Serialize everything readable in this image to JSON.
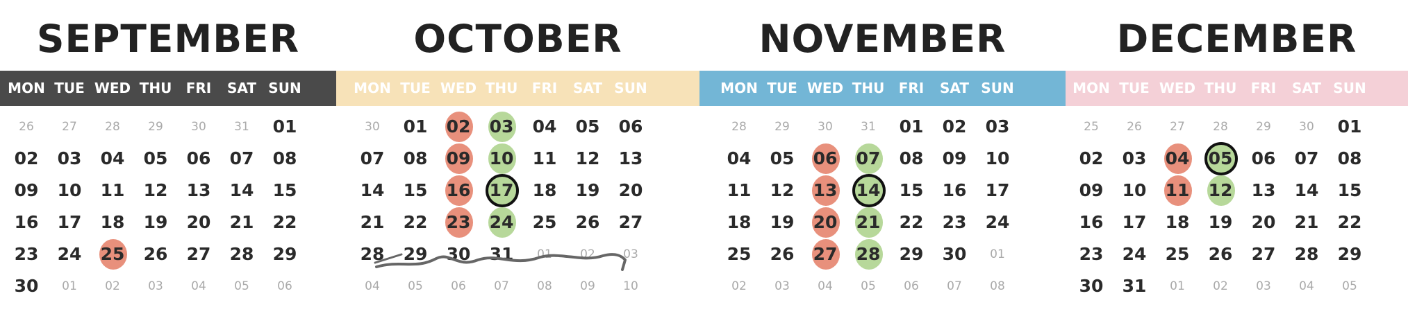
{
  "weekdays": [
    "MON",
    "TUE",
    "WED",
    "THU",
    "FRI",
    "SAT",
    "SUN"
  ],
  "colors": {
    "september": "#4a4a4a",
    "october": "#f7e2b8",
    "november": "#73b6d6",
    "december": "#f4d0d7",
    "weekday_text_on_light": "#ffffff",
    "mark_red": "#e8907c",
    "mark_green": "#b7d89a",
    "ring": "#111111"
  },
  "months": [
    {
      "key": "september",
      "title": "SEPTEMBER",
      "weeks": [
        [
          "26",
          "27",
          "28",
          "29",
          "30",
          "31",
          "01"
        ],
        [
          "02",
          "03",
          "04",
          "05",
          "06",
          "07",
          "08"
        ],
        [
          "09",
          "10",
          "11",
          "12",
          "13",
          "14",
          "15"
        ],
        [
          "16",
          "17",
          "18",
          "19",
          "20",
          "21",
          "22"
        ],
        [
          "23",
          "24",
          "25",
          "26",
          "27",
          "28",
          "29"
        ],
        [
          "30",
          "01",
          "02",
          "03",
          "04",
          "05",
          "06"
        ]
      ],
      "out_of_month": [
        "0-0",
        "0-1",
        "0-2",
        "0-3",
        "0-4",
        "0-5",
        "5-1",
        "5-2",
        "5-3",
        "5-4",
        "5-5",
        "5-6"
      ],
      "marks": {
        "4-2": "red"
      },
      "rings": []
    },
    {
      "key": "october",
      "title": "OCTOBER",
      "weeks": [
        [
          "30",
          "01",
          "02",
          "03",
          "04",
          "05",
          "06"
        ],
        [
          "07",
          "08",
          "09",
          "10",
          "11",
          "12",
          "13"
        ],
        [
          "14",
          "15",
          "16",
          "17",
          "18",
          "19",
          "20"
        ],
        [
          "21",
          "22",
          "23",
          "24",
          "25",
          "26",
          "27"
        ],
        [
          "28",
          "29",
          "30",
          "31",
          "01",
          "02",
          "03"
        ],
        [
          "04",
          "05",
          "06",
          "07",
          "08",
          "09",
          "10"
        ]
      ],
      "out_of_month": [
        "0-0",
        "4-4",
        "4-5",
        "4-6",
        "5-0",
        "5-1",
        "5-2",
        "5-3",
        "5-4",
        "5-5",
        "5-6"
      ],
      "marks": {
        "0-2": "red",
        "0-3": "green",
        "1-2": "red",
        "1-3": "green",
        "2-2": "red",
        "2-3": "green",
        "3-2": "red",
        "3-3": "green"
      },
      "rings": [
        "2-3"
      ],
      "crossed_out_week": 4
    },
    {
      "key": "november",
      "title": "NOVEMBER",
      "weeks": [
        [
          "28",
          "29",
          "30",
          "31",
          "01",
          "02",
          "03"
        ],
        [
          "04",
          "05",
          "06",
          "07",
          "08",
          "09",
          "10"
        ],
        [
          "11",
          "12",
          "13",
          "14",
          "15",
          "16",
          "17"
        ],
        [
          "18",
          "19",
          "20",
          "21",
          "22",
          "23",
          "24"
        ],
        [
          "25",
          "26",
          "27",
          "28",
          "29",
          "30",
          "01"
        ],
        [
          "02",
          "03",
          "04",
          "05",
          "06",
          "07",
          "08"
        ]
      ],
      "out_of_month": [
        "0-0",
        "0-1",
        "0-2",
        "0-3",
        "4-6",
        "5-0",
        "5-1",
        "5-2",
        "5-3",
        "5-4",
        "5-5",
        "5-6"
      ],
      "marks": {
        "1-2": "red",
        "1-3": "green",
        "2-2": "red",
        "2-3": "green",
        "3-2": "red",
        "3-3": "green",
        "4-2": "red",
        "4-3": "green"
      },
      "rings": [
        "2-3"
      ]
    },
    {
      "key": "december",
      "title": "DECEMBER",
      "weeks": [
        [
          "25",
          "26",
          "27",
          "28",
          "29",
          "30",
          "01"
        ],
        [
          "02",
          "03",
          "04",
          "05",
          "06",
          "07",
          "08"
        ],
        [
          "09",
          "10",
          "11",
          "12",
          "13",
          "14",
          "15"
        ],
        [
          "16",
          "17",
          "18",
          "19",
          "20",
          "21",
          "22"
        ],
        [
          "23",
          "24",
          "25",
          "26",
          "27",
          "28",
          "29"
        ],
        [
          "30",
          "31",
          "01",
          "02",
          "03",
          "04",
          "05"
        ]
      ],
      "out_of_month": [
        "0-0",
        "0-1",
        "0-2",
        "0-3",
        "0-4",
        "0-5",
        "5-2",
        "5-3",
        "5-4",
        "5-5",
        "5-6"
      ],
      "marks": {
        "1-2": "red",
        "1-3": "green",
        "2-2": "red",
        "2-3": "green"
      },
      "rings": [
        "1-3"
      ]
    }
  ]
}
